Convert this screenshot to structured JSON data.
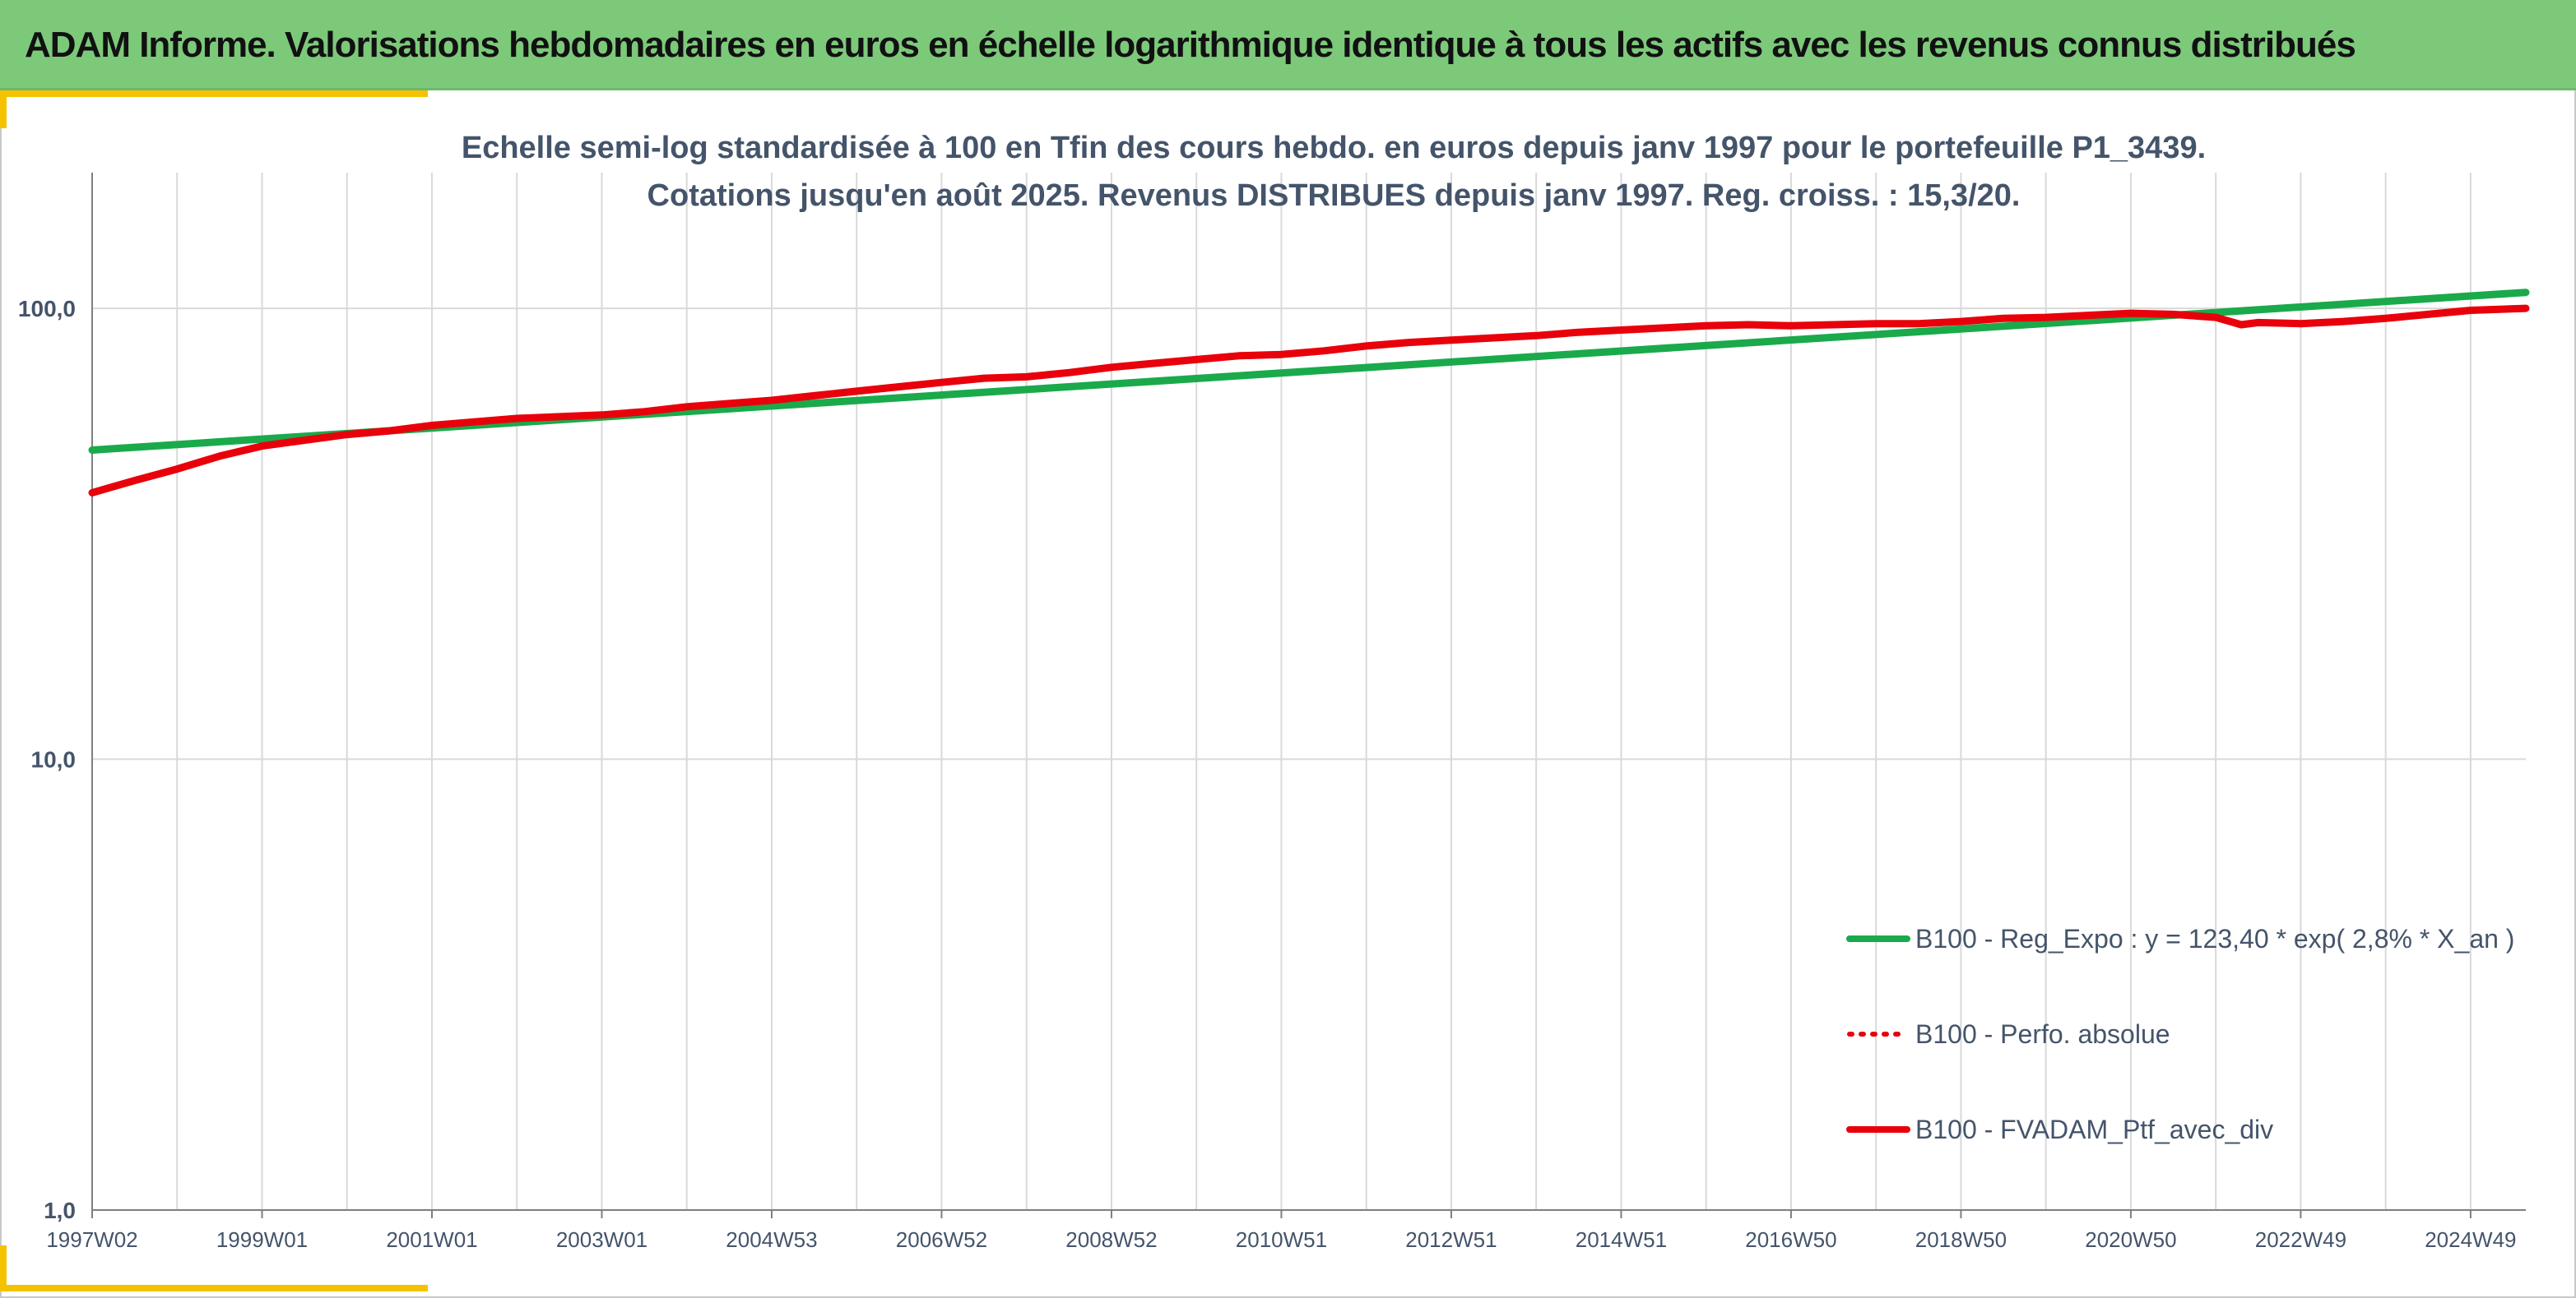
{
  "header": {
    "title": "ADAM Informe. Valorisations hebdomadaires en euros en échelle logarithmique identique à tous les actifs avec les revenus connus distribués"
  },
  "colors": {
    "header_bg": "#7dc97a",
    "corner_accent": "#f5c200",
    "regression_line": "#1aaa4b",
    "portfolio_line": "#e8000b",
    "title_text": "#44546a",
    "grid": "#d9d9d9"
  },
  "chart_data": {
    "type": "line",
    "title_line1": "Echelle semi-log standardisée à 100 en Tfin des cours hebdo. en euros depuis janv 1997 pour le portefeuille P1_3439.",
    "title_line2": "Cotations jusqu'en août 2025. Revenus DISTRIBUES depuis janv 1997. Reg. croiss. : 15,3/20.",
    "y_scale": "log",
    "ylim": [
      1,
      200
    ],
    "y_ticks": [
      {
        "value": 1,
        "label": "1,0"
      },
      {
        "value": 10,
        "label": "10,0"
      },
      {
        "value": 100,
        "label": "100,0"
      }
    ],
    "xlim": [
      1997.0,
      2025.65
    ],
    "x_ticks": [
      {
        "value": 1997.0,
        "label": "1997W02"
      },
      {
        "value": 1999.0,
        "label": "1999W01"
      },
      {
        "value": 2001.0,
        "label": "2001W01"
      },
      {
        "value": 2003.0,
        "label": "2003W01"
      },
      {
        "value": 2005.0,
        "label": "2004W53"
      },
      {
        "value": 2007.0,
        "label": "2006W52"
      },
      {
        "value": 2009.0,
        "label": "2008W52"
      },
      {
        "value": 2011.0,
        "label": "2010W51"
      },
      {
        "value": 2013.0,
        "label": "2012W51"
      },
      {
        "value": 2015.0,
        "label": "2014W51"
      },
      {
        "value": 2017.0,
        "label": "2016W50"
      },
      {
        "value": 2019.0,
        "label": "2018W50"
      },
      {
        "value": 2021.0,
        "label": "2020W50"
      },
      {
        "value": 2023.0,
        "label": "2022W49"
      },
      {
        "value": 2025.0,
        "label": "2024W49"
      }
    ],
    "grid": true,
    "legend_position": "bottom-right",
    "series": [
      {
        "name": "B100 - Reg_Expo : y = 123,40 * exp( 2,8% *  X_an )",
        "color": "#1aaa4b",
        "style": "solid",
        "x": [
          1997.0,
          2025.65
        ],
        "y": [
          48.5,
          108.5
        ]
      },
      {
        "name": "B100 - Perfo. absolue",
        "color": "#e8000b",
        "style": "dotted",
        "x": [],
        "y": []
      },
      {
        "name": "B100 - FVADAM_Ptf_avec_div",
        "color": "#e8000b",
        "style": "solid",
        "x": [
          1997.0,
          1997.5,
          1998.0,
          1998.5,
          1999.0,
          1999.5,
          2000.0,
          2000.5,
          2001.0,
          2001.5,
          2002.0,
          2002.5,
          2003.0,
          2003.5,
          2004.0,
          2004.5,
          2005.0,
          2005.5,
          2006.0,
          2006.5,
          2007.0,
          2007.5,
          2008.0,
          2008.5,
          2009.0,
          2009.5,
          2010.0,
          2010.5,
          2011.0,
          2011.5,
          2012.0,
          2012.5,
          2013.0,
          2013.5,
          2014.0,
          2014.5,
          2015.0,
          2015.5,
          2016.0,
          2016.5,
          2017.0,
          2017.5,
          2018.0,
          2018.5,
          2019.0,
          2019.5,
          2020.0,
          2020.5,
          2021.0,
          2021.5,
          2022.0,
          2022.3,
          2022.5,
          2023.0,
          2023.5,
          2024.0,
          2024.5,
          2025.0,
          2025.65
        ],
        "y": [
          39,
          41.5,
          44,
          47,
          49.5,
          51,
          52.5,
          53.5,
          55,
          56,
          57,
          57.5,
          58,
          59,
          60.5,
          61.5,
          62.5,
          64,
          65.5,
          67,
          68.5,
          70,
          70.5,
          72,
          74,
          75.5,
          77,
          78.5,
          79,
          80.5,
          82.5,
          84,
          85,
          86,
          87,
          88.5,
          89.5,
          90.5,
          91.5,
          92,
          91.5,
          92,
          92.5,
          92.5,
          93.5,
          95,
          95.5,
          96.5,
          97.5,
          97,
          95.5,
          92,
          93,
          92.5,
          93.5,
          95,
          97,
          99,
          100
        ]
      }
    ]
  }
}
